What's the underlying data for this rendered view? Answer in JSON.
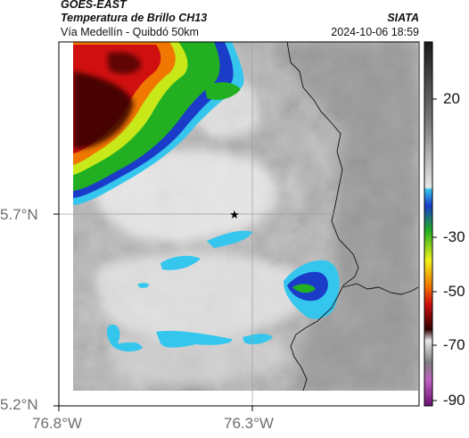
{
  "header": {
    "satellite": "GOES-EAST",
    "product": "Temperatura de Brillo CH13",
    "region": "Vía Medellín - Quibdó 50km",
    "source": "SIATA",
    "datetime": "2024-10-06 18:59"
  },
  "map": {
    "lat_ticks": [
      "5.7°N",
      "5.2°N"
    ],
    "lon_ticks": [
      "76.8°W",
      "76.3°W"
    ],
    "marker": "star"
  },
  "colorbar": {
    "tick_labels": [
      "20",
      "-30",
      "-50",
      "-70",
      "-90"
    ],
    "ticks": [
      20,
      -30,
      -50,
      -70,
      -90
    ],
    "colors": {
      "warm_dark": "#2a2a2a",
      "grey_light": "#f0f0f0",
      "cyan": "#35c6ee",
      "blue": "#1a3cc8",
      "green": "#22b022",
      "yellow": "#f2f21a",
      "orange": "#f07800",
      "red": "#d01010",
      "dark_red": "#300000",
      "magenta": "#c060c0"
    }
  }
}
